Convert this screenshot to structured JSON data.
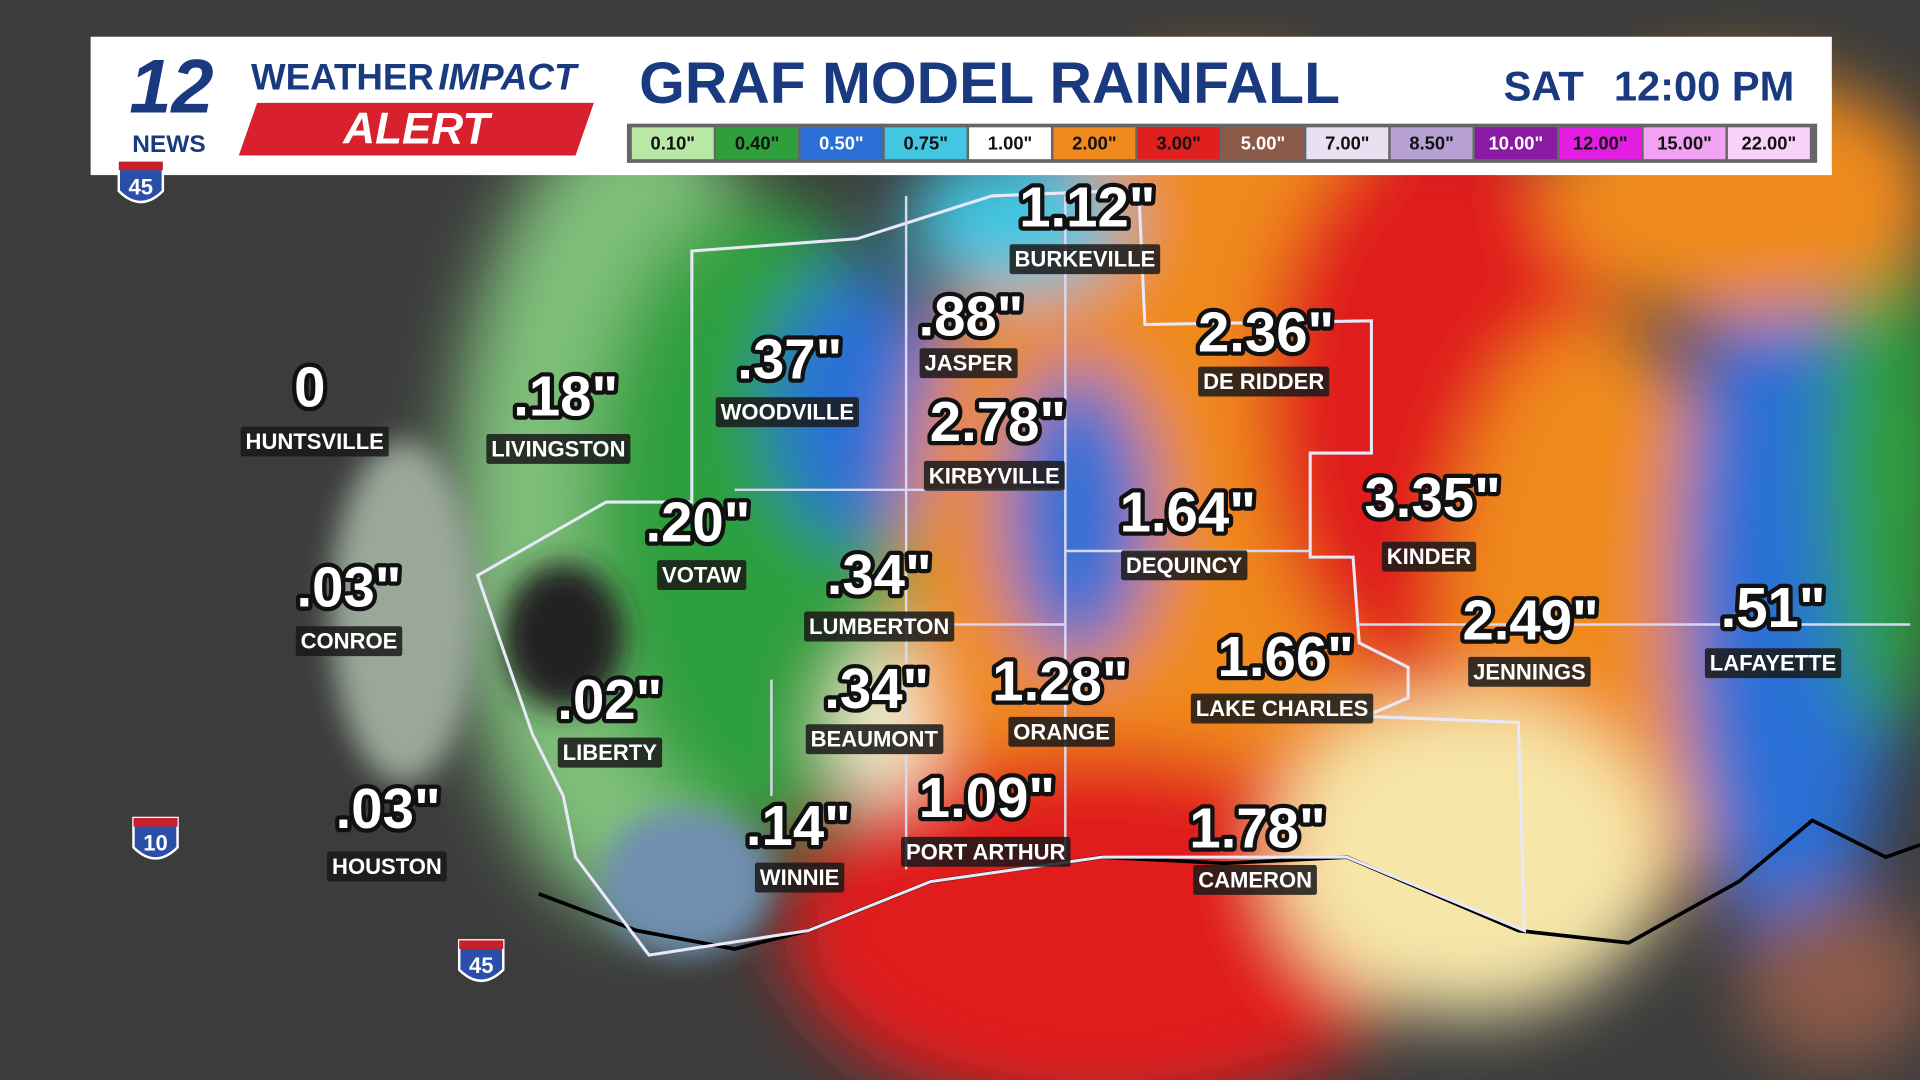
{
  "header": {
    "logo_number": "12",
    "logo_news": "NEWS",
    "brand_weather": "WEATHER",
    "brand_impact": "IMPACT",
    "brand_alert": "ALERT",
    "title": "GRAF MODEL RAINFALL",
    "day": "SAT",
    "time": "12:00 PM"
  },
  "legend": [
    {
      "label": "0.10\"",
      "color": "#b9e8a6",
      "text_color": "#111"
    },
    {
      "label": "0.40\"",
      "color": "#2f9f3c",
      "text_color": "#111"
    },
    {
      "label": "0.50\"",
      "color": "#2a6fd6",
      "text_color": "#fff"
    },
    {
      "label": "0.75\"",
      "color": "#42c6e2",
      "text_color": "#111"
    },
    {
      "label": "1.00\"",
      "color": "#ffffff",
      "text_color": "#111"
    },
    {
      "label": "2.00\"",
      "color": "#f08a1e",
      "text_color": "#111"
    },
    {
      "label": "3.00\"",
      "color": "#e01f1f",
      "text_color": "#111"
    },
    {
      "label": "5.00\"",
      "color": "#8b5a48",
      "text_color": "#fff"
    },
    {
      "label": "7.00\"",
      "color": "#e9e1f1",
      "text_color": "#111"
    },
    {
      "label": "8.50\"",
      "color": "#b7a0d2",
      "text_color": "#111"
    },
    {
      "label": "10.00\"",
      "color": "#8a1aa2",
      "text_color": "#fff"
    },
    {
      "label": "12.00\"",
      "color": "#e21ee2",
      "text_color": "#111"
    },
    {
      "label": "15.00\"",
      "color": "#f2a2f2",
      "text_color": "#111"
    },
    {
      "label": "22.00\"",
      "color": "#f9d2f9",
      "text_color": "#111"
    }
  ],
  "cities": [
    {
      "value": "0",
      "name": "HUNTSVILLE"
    },
    {
      "value": ".18\"",
      "name": "LIVINGSTON"
    },
    {
      "value": ".37\"",
      "name": "WOODVILLE"
    },
    {
      "value": ".88\"",
      "name": "JASPER"
    },
    {
      "value": "1.12\"",
      "name": "BURKEVILLE"
    },
    {
      "value": "2.36\"",
      "name": "DE RIDDER"
    },
    {
      "value": "2.78\"",
      "name": "KIRBYVILLE"
    },
    {
      "value": "1.64\"",
      "name": "DEQUINCY"
    },
    {
      "value": "3.35\"",
      "name": "KINDER"
    },
    {
      "value": ".20\"",
      "name": "VOTAW"
    },
    {
      "value": ".34\"",
      "name": "LUMBERTON"
    },
    {
      "value": "2.49\"",
      "name": "JENNINGS"
    },
    {
      "value": ".51\"",
      "name": "LAFAYETTE"
    },
    {
      "value": ".03\"",
      "name": "CONROE"
    },
    {
      "value": ".02\"",
      "name": "LIBERTY"
    },
    {
      "value": ".34\"",
      "name": "BEAUMONT"
    },
    {
      "value": "1.28\"",
      "name": "ORANGE"
    },
    {
      "value": "1.66\"",
      "name": "LAKE CHARLES"
    },
    {
      "value": ".03\"",
      "name": "HOUSTON"
    },
    {
      "value": ".14\"",
      "name": "WINNIE"
    },
    {
      "value": "1.09\"",
      "name": "PORT ARTHUR"
    },
    {
      "value": "1.78\"",
      "name": "CAMERON"
    }
  ],
  "highways": [
    "45",
    "10",
    "45"
  ]
}
